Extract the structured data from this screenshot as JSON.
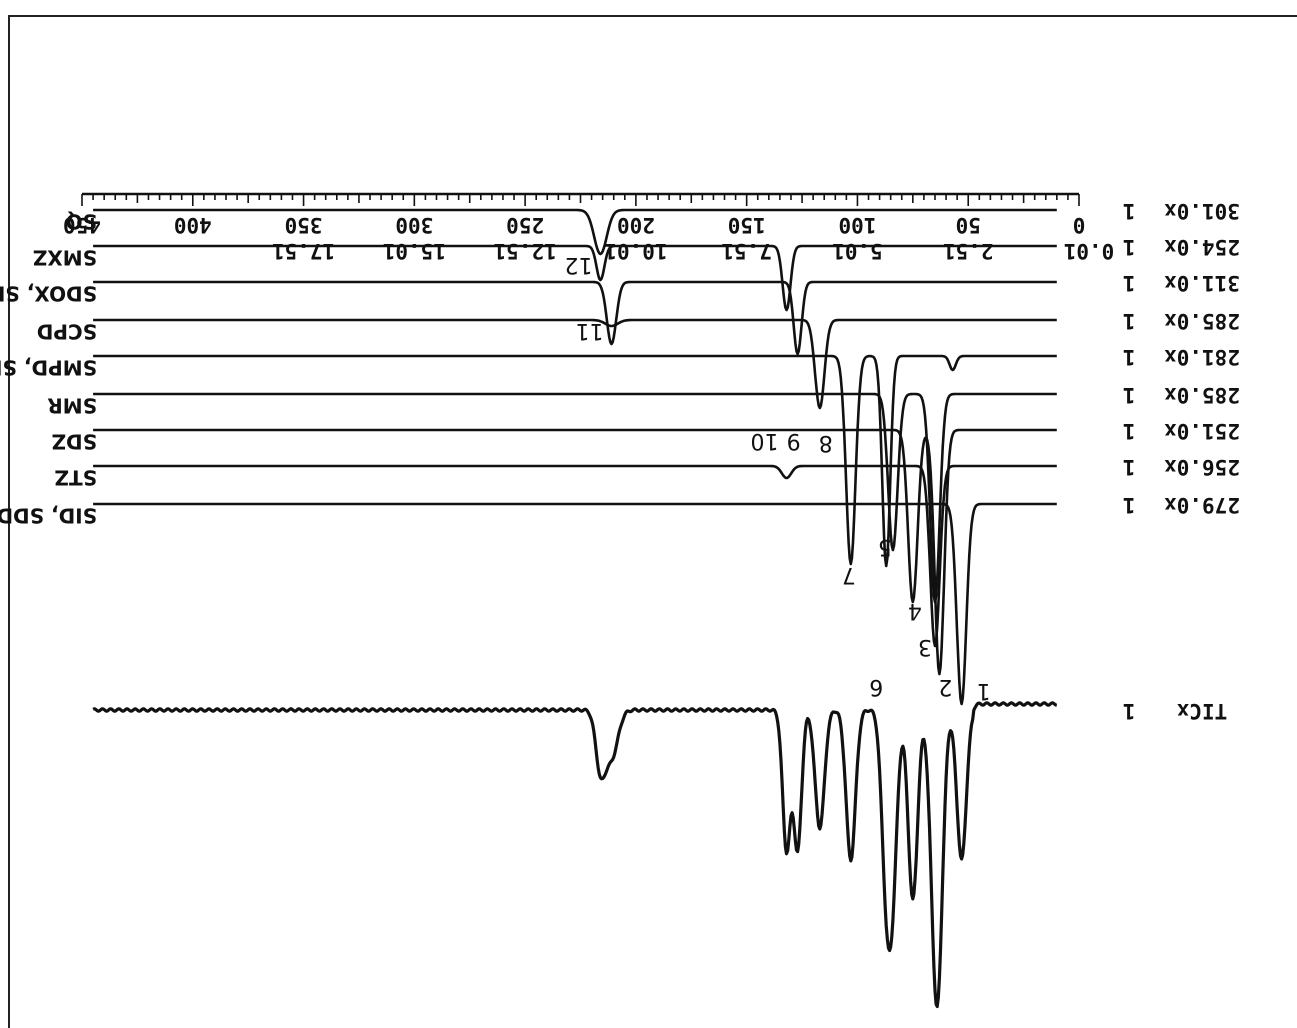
{
  "chart_data": {
    "type": "line",
    "title": "",
    "orientation_note": "",
    "x_axis": {
      "scan_range": [
        0,
        450
      ],
      "scan_ticks": [
        "0",
        "50",
        "100",
        "150",
        "200",
        "250",
        "300",
        "350",
        "400",
        "450"
      ],
      "time_ticks": [
        "0.01",
        "2.51",
        "5.01",
        "7.51",
        "10.01",
        "12.51",
        "15.01",
        "17.51"
      ]
    },
    "series": [
      {
        "ion": "301.0x",
        "scale": "1",
        "names": "SQ"
      },
      {
        "ion": "254.0x",
        "scale": "1",
        "names": "SMXZ"
      },
      {
        "ion": "311.0x",
        "scale": "1",
        "names": "SDOX, SDMX"
      },
      {
        "ion": "285.0x",
        "scale": "1",
        "names": "SCPD"
      },
      {
        "ion": "281.0x",
        "scale": "1",
        "names": "SMPD, SMMX"
      },
      {
        "ion": "285.0x",
        "scale": "1",
        "names": "SMR"
      },
      {
        "ion": "251.0x",
        "scale": "1",
        "names": "SDZ"
      },
      {
        "ion": "256.0x",
        "scale": "1",
        "names": "STZ"
      },
      {
        "ion": "279.0x",
        "scale": "1",
        "names": "SID, SDD"
      }
    ],
    "tic": {
      "label": "TICx",
      "scale": "1"
    },
    "peaks": [
      {
        "num": "1",
        "scan": 53
      },
      {
        "num": "2",
        "scan": 63
      },
      {
        "num": "3",
        "scan": 65
      },
      {
        "num": "4",
        "scan": 75
      },
      {
        "num": "5",
        "scan": 84
      },
      {
        "num": "6",
        "scan": 87
      },
      {
        "num": "7",
        "scan": 103
      },
      {
        "num": "8",
        "scan": 117
      },
      {
        "num": "9",
        "scan": 127
      },
      {
        "num": "10",
        "scan": 132
      },
      {
        "num": "11",
        "scan": 211
      },
      {
        "num": "12",
        "scan": 216
      }
    ]
  }
}
